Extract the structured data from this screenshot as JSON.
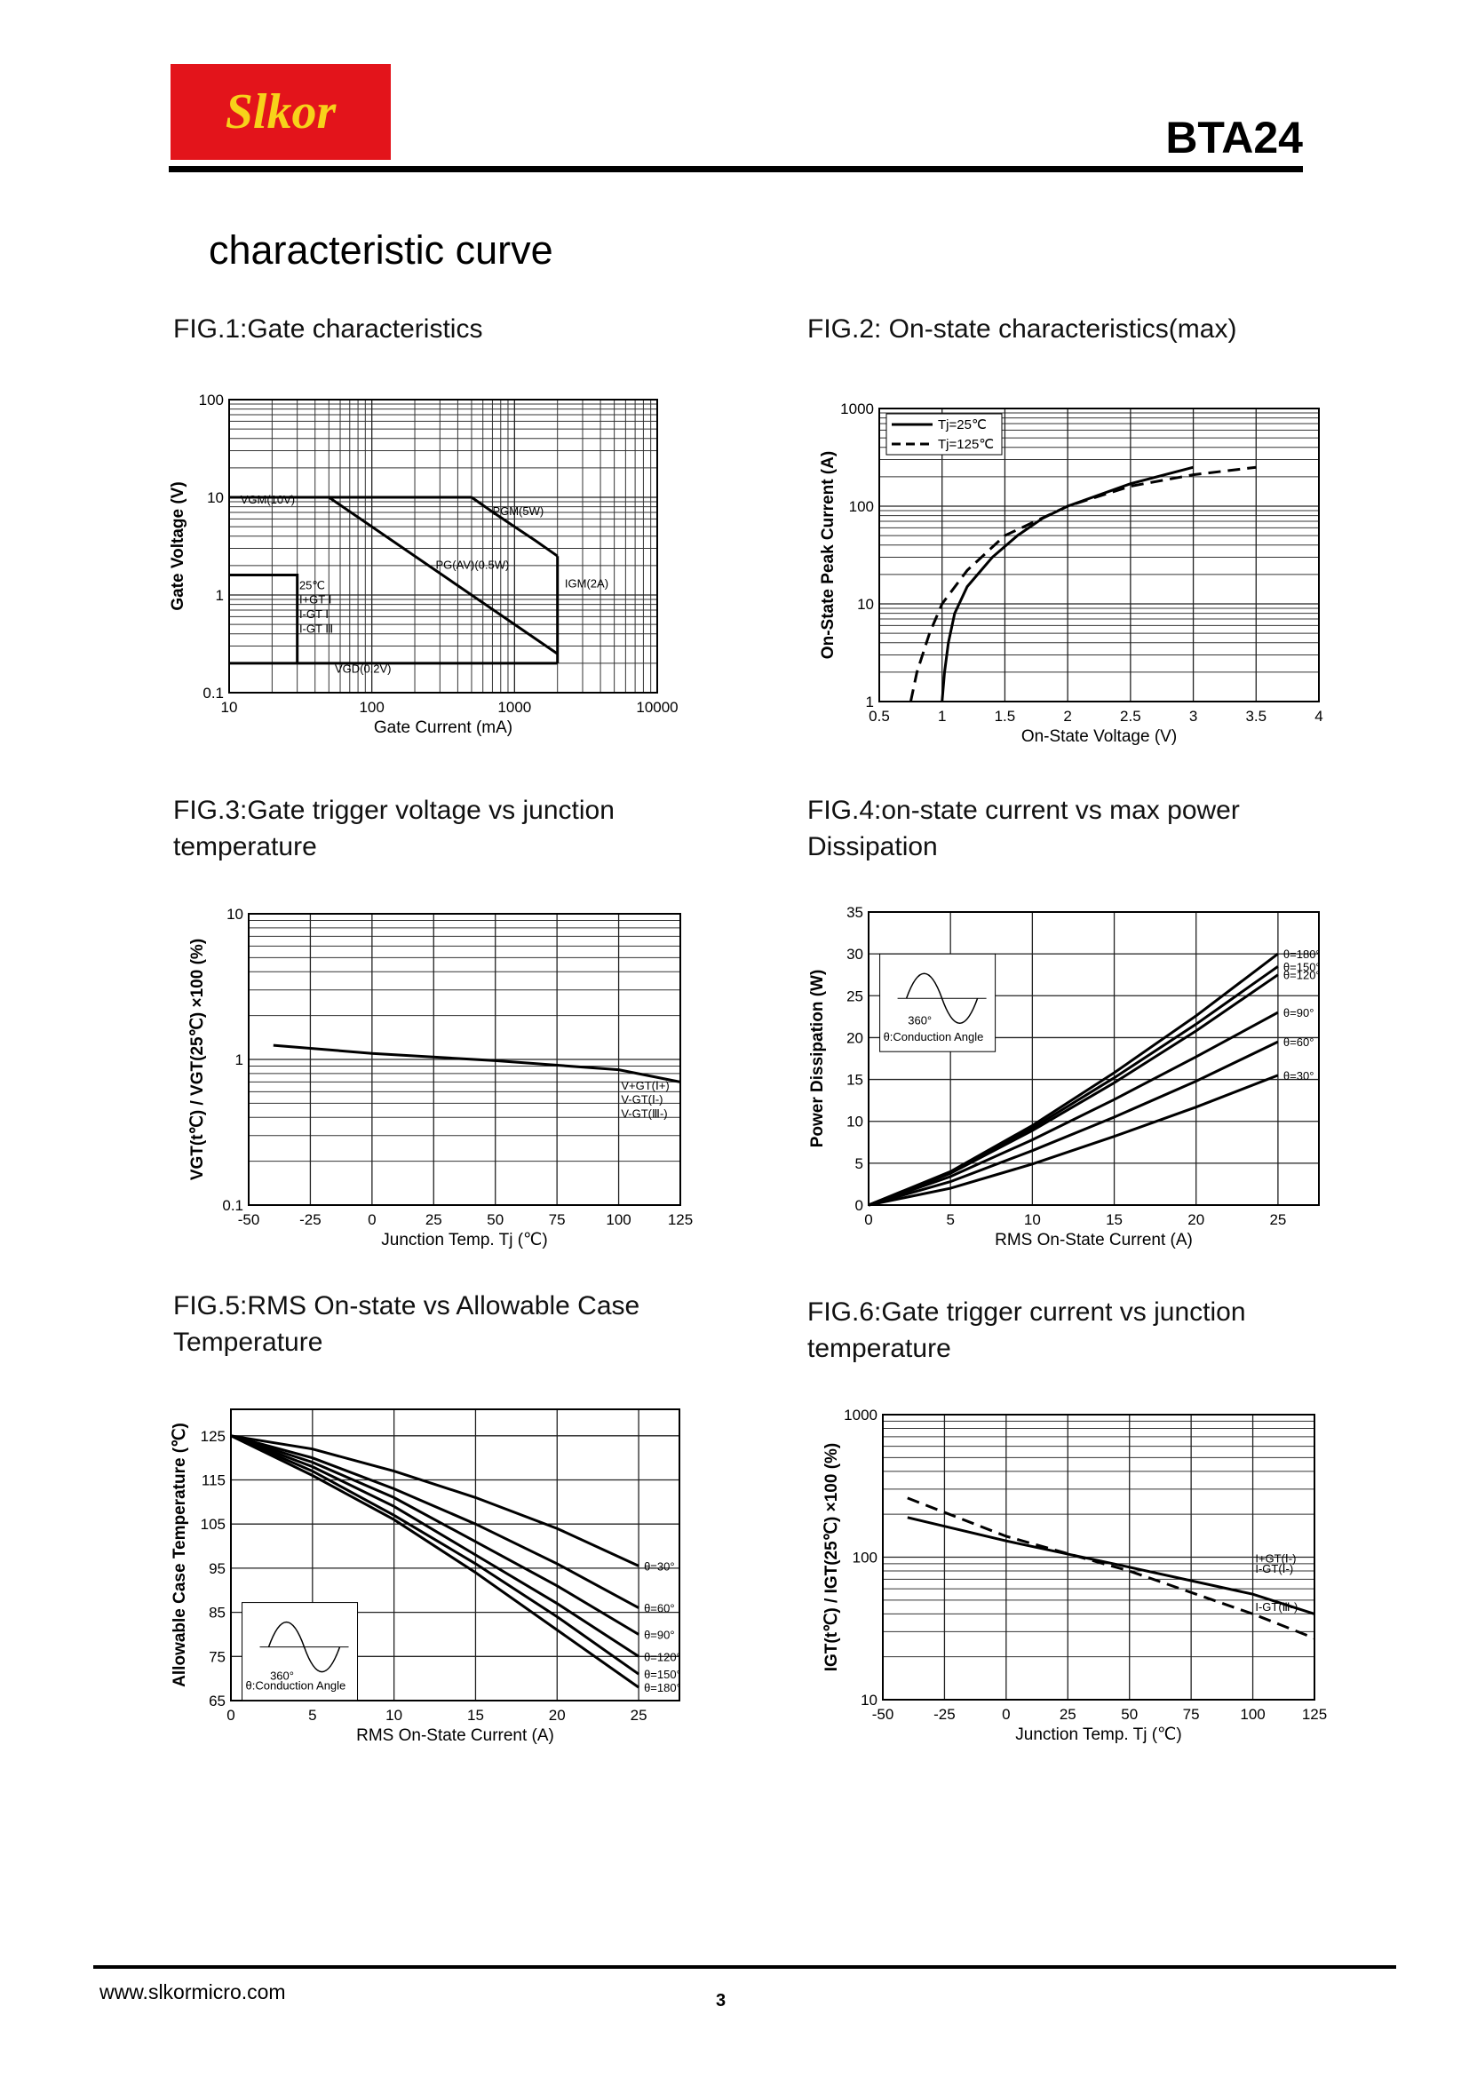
{
  "header": {
    "logo": "Slkor",
    "part": "BTA24"
  },
  "title": "characteristic curve",
  "footer": {
    "url": "www.slkormicro.com",
    "page": "3"
  },
  "chart_data": [
    {
      "type": "line",
      "title": "FIG.1:Gate  characteristics",
      "x_label": "Gate Current (mA)",
      "y_label": "Gate Voltage (V)",
      "xlog": true,
      "ylog": true,
      "xlim": [
        10,
        10000
      ],
      "ylim": [
        0.1,
        100
      ],
      "xticks": [
        10,
        100,
        1000,
        10000
      ],
      "yticks": [
        0.1,
        1,
        10,
        100
      ],
      "grid": true,
      "color": "#000",
      "series": [
        {
          "x": [
            10,
            500
          ],
          "values": [
            10,
            10
          ]
        },
        {
          "x": [
            500,
            700,
            1000,
            1400,
            2000
          ],
          "values": [
            10,
            7.1,
            5,
            3.6,
            2.5
          ]
        },
        {
          "x": [
            2000,
            2000
          ],
          "values": [
            2.5,
            0.2
          ]
        },
        {
          "x": [
            50,
            2000
          ],
          "values": [
            10,
            0.25
          ]
        },
        {
          "x": [
            10,
            2000
          ],
          "values": [
            0.2,
            0.2
          ]
        },
        {
          "x": [
            10,
            30,
            30
          ],
          "values": [
            1.6,
            1.6,
            0.2
          ]
        }
      ],
      "annotations": [
        "VGM(10V)",
        "PGM(5W)",
        "PG(AV)(0.5W)",
        "IGM(2A)",
        "VGD(0.2V)",
        "25℃",
        "I+GT Ⅰ",
        "I-GT Ⅰ",
        "I-GT Ⅲ"
      ]
    },
    {
      "type": "line",
      "title": "FIG.2: On-state characteristics(max)",
      "x_label": "On-State Voltage (V)",
      "y_label": "On-State Peak Current (A)",
      "ylog": true,
      "xlim": [
        0.5,
        4
      ],
      "ylim": [
        1,
        1000
      ],
      "xticks": [
        0.5,
        1,
        1.5,
        2,
        2.5,
        3,
        3.5,
        4
      ],
      "yticks": [
        1,
        10,
        100,
        1000
      ],
      "grid": true,
      "legend": "top-left",
      "color": "#000",
      "series": [
        {
          "name": "Tj=25℃",
          "dash": false,
          "x": [
            1.0,
            1.02,
            1.05,
            1.1,
            1.2,
            1.4,
            1.6,
            1.8,
            2.0,
            2.5,
            3.0
          ],
          "values": [
            1,
            2,
            4,
            8,
            15,
            30,
            50,
            75,
            100,
            170,
            250
          ]
        },
        {
          "name": "Tj=125℃",
          "dash": true,
          "x": [
            0.75,
            0.8,
            0.9,
            1.0,
            1.2,
            1.5,
            2,
            2.5,
            3,
            3.5
          ],
          "values": [
            1,
            2,
            5,
            10,
            22,
            50,
            100,
            160,
            210,
            250
          ]
        }
      ]
    },
    {
      "type": "line",
      "title": "FIG.3:Gate trigger voltage  vs junction temperature",
      "x_label": "Junction Temp. Tj (℃)",
      "y_label": "VGT(t℃) / VGT(25℃) ×100 (%)",
      "ylog": true,
      "xlim": [
        -50,
        125
      ],
      "ylim": [
        0.1,
        10
      ],
      "xticks": [
        -50,
        -25,
        0,
        25,
        50,
        75,
        100,
        125
      ],
      "yticks": [
        0.1,
        1,
        10
      ],
      "grid": true,
      "color": "#000",
      "series": [
        {
          "x": [
            -40,
            0,
            50,
            100,
            125
          ],
          "values": [
            1.25,
            1.1,
            0.98,
            0.85,
            0.7
          ]
        }
      ],
      "annotations": [
        "V+GT(Ⅰ+)",
        "V-GT(Ⅰ-)",
        "V-GT(Ⅲ-)"
      ]
    },
    {
      "type": "line",
      "title": "FIG.4:on-state current vs max power Dissipation",
      "x_label": "RMS On-State Current (A)",
      "y_label": "Power Dissipation (W)",
      "xlim": [
        0,
        27.5
      ],
      "ylim": [
        0,
        35
      ],
      "xticks": [
        0,
        5,
        10,
        15,
        20,
        25
      ],
      "yticks": [
        0,
        5,
        10,
        15,
        20,
        25,
        30,
        35
      ],
      "grid": true,
      "color": "#000",
      "series": [
        {
          "name": "θ=180°",
          "x": [
            0,
            5,
            10,
            15,
            20,
            25
          ],
          "values": [
            0,
            4,
            9.5,
            15.8,
            22.6,
            30
          ]
        },
        {
          "name": "θ=150°",
          "x": [
            0,
            5,
            10,
            15,
            20,
            25
          ],
          "values": [
            0,
            3.9,
            9.2,
            15.2,
            21.6,
            28.5
          ]
        },
        {
          "name": "θ=120°",
          "x": [
            0,
            5,
            10,
            15,
            20,
            25
          ],
          "values": [
            0,
            3.8,
            8.9,
            14.6,
            20.8,
            27.5
          ]
        },
        {
          "name": "θ=90°",
          "x": [
            0,
            5,
            10,
            15,
            20,
            25
          ],
          "values": [
            0,
            3.4,
            7.8,
            12.6,
            17.7,
            23
          ]
        },
        {
          "name": "θ=60°",
          "x": [
            0,
            5,
            10,
            15,
            20,
            25
          ],
          "values": [
            0,
            2.8,
            6.5,
            10.5,
            14.8,
            19.5
          ]
        },
        {
          "name": "θ=30°",
          "x": [
            0,
            5,
            10,
            15,
            20,
            25
          ],
          "values": [
            0,
            2.0,
            4.9,
            8.2,
            11.7,
            15.5
          ]
        }
      ],
      "annotations": [
        "θ:Conduction Angle",
        "360°"
      ]
    },
    {
      "type": "line",
      "title": "FIG.5:RMS On-state vs Allowable Case Temperature",
      "x_label": "RMS On-State Current (A)",
      "y_label": "Allowable Case Temperature (℃)",
      "xlim": [
        0,
        27.5
      ],
      "ylim": [
        65,
        131
      ],
      "xticks": [
        0,
        5,
        10,
        15,
        20,
        25
      ],
      "yticks": [
        65,
        75,
        85,
        95,
        105,
        115,
        125
      ],
      "grid": true,
      "color": "#000",
      "series": [
        {
          "name": "θ=30°",
          "x": [
            0,
            5,
            10,
            15,
            20,
            25
          ],
          "values": [
            125,
            122,
            117,
            111,
            104,
            95.5
          ]
        },
        {
          "name": "θ=60°",
          "x": [
            0,
            5,
            10,
            15,
            20,
            25
          ],
          "values": [
            125,
            120,
            113,
            105,
            96,
            86
          ]
        },
        {
          "name": "θ=90°",
          "x": [
            0,
            5,
            10,
            15,
            20,
            25
          ],
          "values": [
            125,
            119,
            111,
            101,
            91,
            80
          ]
        },
        {
          "name": "θ=120°",
          "x": [
            0,
            5,
            10,
            15,
            20,
            25
          ],
          "values": [
            125,
            118,
            109,
            98,
            87,
            75
          ]
        },
        {
          "name": "θ=150°",
          "x": [
            0,
            5,
            10,
            15,
            20,
            25
          ],
          "values": [
            125,
            117,
            107,
            96,
            84,
            71
          ]
        },
        {
          "name": "θ=180°",
          "x": [
            0,
            5,
            10,
            15,
            20,
            25
          ],
          "values": [
            125,
            116,
            106,
            94,
            81,
            68
          ]
        }
      ],
      "annotations": [
        "θ:Conduction Angle",
        "360°"
      ]
    },
    {
      "type": "line",
      "title": "FIG.6:Gate trigger current vs junction temperature",
      "x_label": "Junction Temp. Tj (℃)",
      "y_label": "IGT(t℃) / IGT(25℃) ×100 (%)",
      "ylog": true,
      "xlim": [
        -50,
        125
      ],
      "ylim": [
        10,
        1000
      ],
      "xticks": [
        -50,
        -25,
        0,
        25,
        50,
        75,
        100,
        125
      ],
      "yticks": [
        10,
        100,
        1000
      ],
      "grid": true,
      "color": "#000",
      "series": [
        {
          "dash": false,
          "x": [
            -40,
            0,
            50,
            100,
            125
          ],
          "values": [
            190,
            130,
            85,
            55,
            40
          ]
        },
        {
          "dash": true,
          "x": [
            -40,
            0,
            50,
            100,
            125
          ],
          "values": [
            260,
            140,
            80,
            40,
            27
          ]
        }
      ],
      "annotations": [
        "I+GT(Ⅰ-)",
        "I-GT(Ⅰ-)",
        "I-GT(Ⅲ-)"
      ]
    }
  ]
}
